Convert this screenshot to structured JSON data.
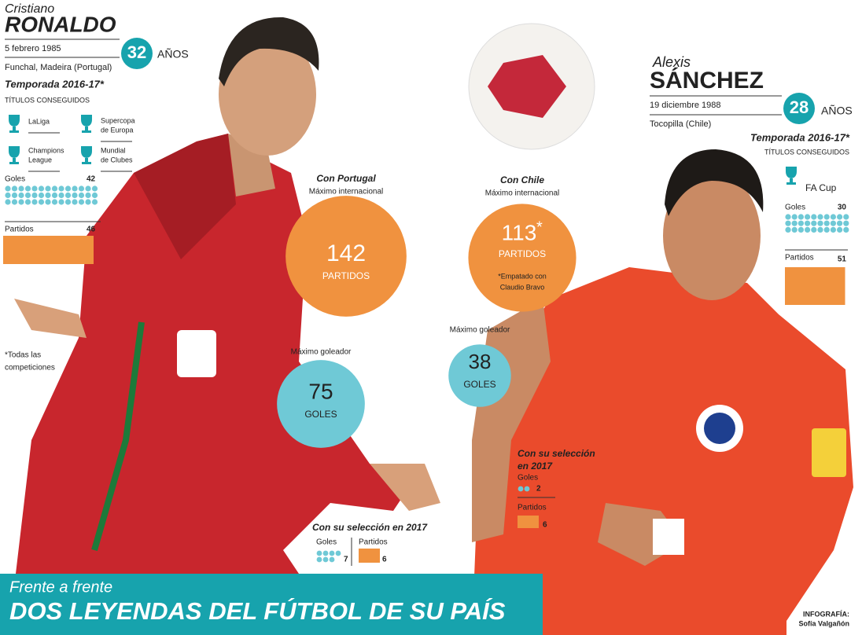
{
  "ronaldo": {
    "first_name": "Cristiano",
    "last_name": "RONALDO",
    "birth_date": "5 febrero 1985",
    "birth_place": "Funchal, Madeira (Portugal)",
    "age": 32,
    "age_unit": "AÑOS",
    "season_title": "Temporada 2016-17*",
    "titles_heading": "TÍTULOS CONSEGUIDOS",
    "titles": [
      [
        "LaLiga"
      ],
      [
        "Supercopa",
        "de Europa"
      ],
      [
        "Champions",
        "League"
      ],
      [
        "Mundial",
        "de Clubes"
      ]
    ],
    "goals_label": "Goles",
    "goals": 42,
    "matches_label": "Partidos",
    "matches": 46,
    "note": [
      "*Todas las",
      "competiciones"
    ],
    "national": {
      "heading": "Con Portugal",
      "caps_label": "Máximo internacional",
      "caps": 142,
      "caps_unit": "PARTIDOS",
      "scorer_label": "Máximo goleador",
      "goals": 75,
      "goals_unit": "GOLES"
    },
    "year": {
      "heading": [
        "Con su selección en 2017"
      ],
      "goals_label": "Goles",
      "goals": 7,
      "matches_label": "Partidos",
      "matches": 6
    }
  },
  "sanchez": {
    "first_name": "Alexis",
    "last_name": "SÁNCHEZ",
    "birth_date": "19 diciembre 1988",
    "birth_place": "Tocopilla (Chile)",
    "age": 28,
    "age_unit": "AÑOS",
    "season_title": "Temporada 2016-17*",
    "titles_heading": "TÍTULOS CONSEGUIDOS",
    "titles": [
      [
        "FA Cup"
      ]
    ],
    "goals_label": "Goles",
    "goals": 30,
    "matches_label": "Partidos",
    "matches": 51,
    "national": {
      "heading": "Con Chile",
      "caps_label": "Máximo internacional",
      "caps": 113,
      "caps_marker": "*",
      "caps_unit": "PARTIDOS",
      "caps_note": [
        "*Empatado con",
        "Claudio Bravo"
      ],
      "scorer_label": "Máximo goleador",
      "goals": 38,
      "goals_unit": "GOLES"
    },
    "year": {
      "heading": [
        "Con su selección",
        "en 2017"
      ],
      "goals_label": "Goles",
      "goals": 2,
      "matches_label": "Partidos",
      "matches": 6
    }
  },
  "footer": {
    "kicker": "Frente a frente",
    "headline": "DOS LEYENDAS DEL FÚTBOL DE SU PAÍS",
    "credit_label": "INFOGRAFÍA:",
    "credit_name": "Sofía Valgañón"
  }
}
